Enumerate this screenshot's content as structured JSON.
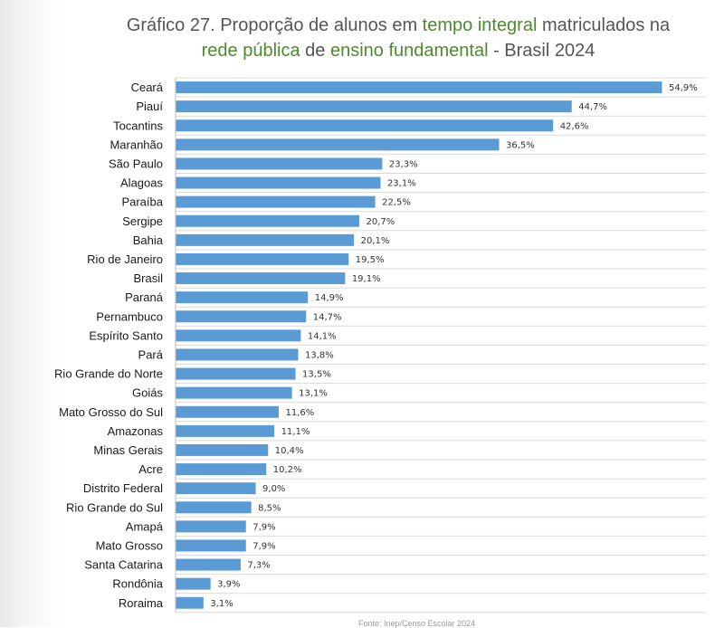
{
  "title": {
    "part1": "Gráfico 27. Proporção de alunos em ",
    "hl1": "tempo integral",
    "part2": " matriculados na",
    "hl2": "rede pública",
    "part3": " de ",
    "hl3": "ensino fundamental",
    "part4": " - Brasil 2024"
  },
  "footer": "Fonte: Inep/Censo Escolar 2024",
  "colors": {
    "bar": "#5b9bd5",
    "title_highlight": "#4d8a2d"
  },
  "chart_data": {
    "type": "bar",
    "orientation": "horizontal",
    "categories": [
      "Ceará",
      "Piauí",
      "Tocantins",
      "Maranhão",
      "São Paulo",
      "Alagoas",
      "Paraíba",
      "Sergipe",
      "Bahia",
      "Rio de Janeiro",
      "Brasil",
      "Paraná",
      "Pernambuco",
      "Espírito Santo",
      "Pará",
      "Rio Grande do Norte",
      "Goiás",
      "Mato Grosso do Sul",
      "Amazonas",
      "Minas Gerais",
      "Acre",
      "Distrito Federal",
      "Rio Grande do Sul",
      "Amapá",
      "Mato Grosso",
      "Santa Catarina",
      "Rondônia",
      "Roraima"
    ],
    "values": [
      54.9,
      44.7,
      42.6,
      36.5,
      23.3,
      23.1,
      22.5,
      20.7,
      20.1,
      19.5,
      19.1,
      14.9,
      14.7,
      14.1,
      13.8,
      13.5,
      13.1,
      11.6,
      11.1,
      10.4,
      10.2,
      9.0,
      8.5,
      7.9,
      7.9,
      7.3,
      3.9,
      3.1
    ],
    "value_labels": [
      "54,9%",
      "44,7%",
      "42,6%",
      "36,5%",
      "23,3%",
      "23,1%",
      "22,5%",
      "20,7%",
      "20,1%",
      "19,5%",
      "19,1%",
      "14,9%",
      "14,7%",
      "14,1%",
      "13,8%",
      "13,5%",
      "13,1%",
      "11,6%",
      "11,1%",
      "10,4%",
      "10,2%",
      "9,0%",
      "8,5%",
      "7,9%",
      "7,9%",
      "7,3%",
      "3,9%",
      "3,1%"
    ],
    "xlim": [
      0,
      60
    ],
    "grid": true,
    "legend": "none"
  }
}
